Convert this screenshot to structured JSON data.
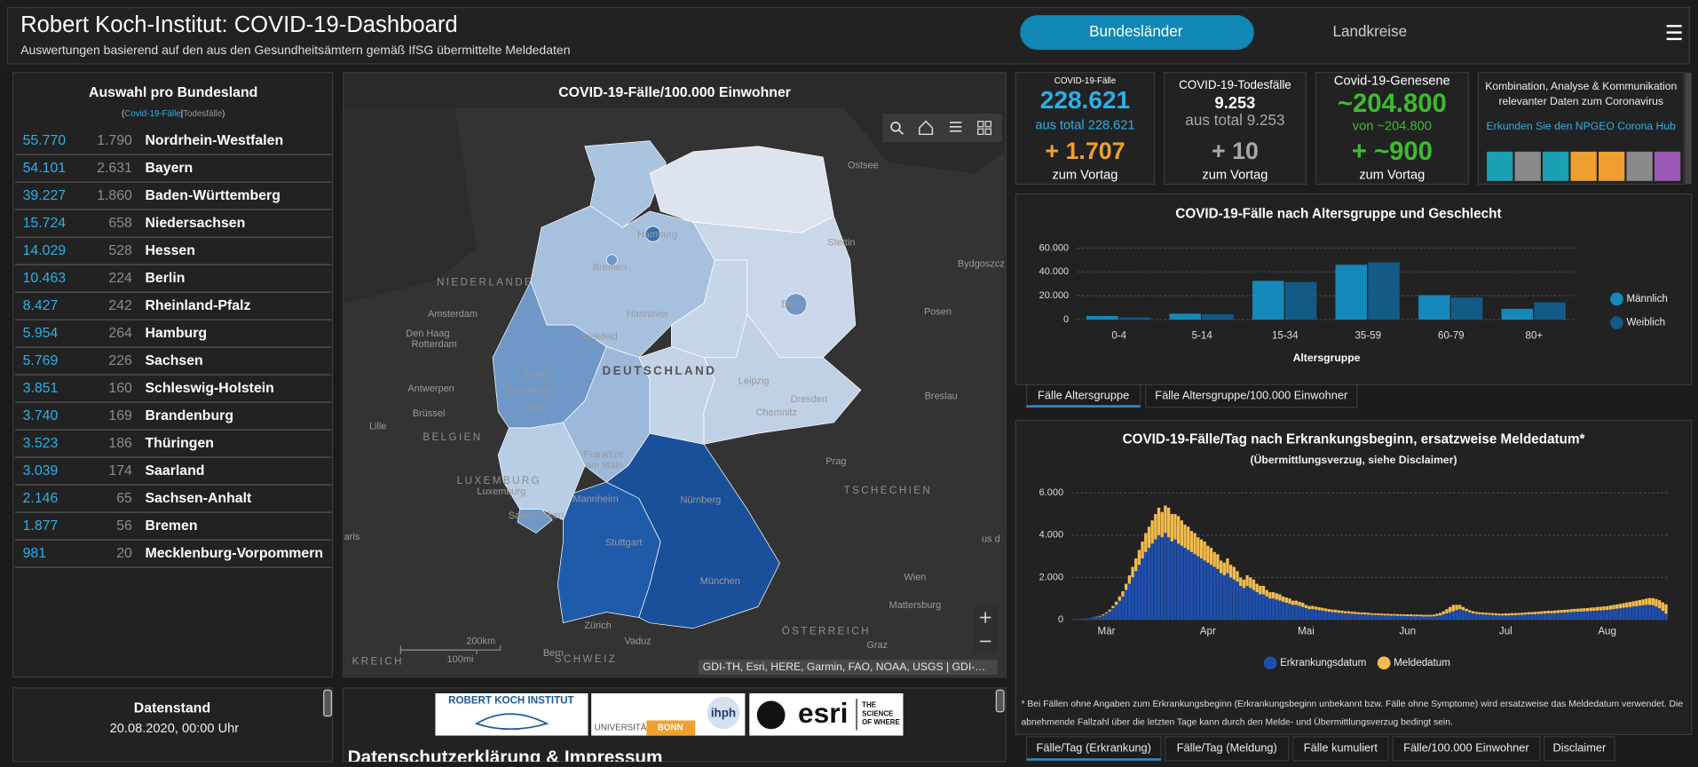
{
  "header": {
    "title": "Robert Koch-Institut: COVID-19-Dashboard",
    "subtitle": "Auswertungen basierend auf den aus den Gesundheitsämtern gemäß IfSG übermittelte Meldedaten"
  },
  "nav": {
    "tabs": [
      "Bundesländer",
      "Landkreise"
    ]
  },
  "state_list": {
    "title": "Auswahl pro Bundesland",
    "filter": [
      "(",
      "Covid-19-Fälle",
      "|",
      "Todesfälle",
      ")"
    ],
    "rows": [
      [
        "55.770",
        "1.790",
        "Nordrhein-Westfalen"
      ],
      [
        "54.101",
        "2.631",
        "Bayern"
      ],
      [
        "39.227",
        "1.860",
        "Baden-Württemberg"
      ],
      [
        "15.724",
        "658",
        "Niedersachsen"
      ],
      [
        "14.029",
        "528",
        "Hessen"
      ],
      [
        "10.463",
        "224",
        "Berlin"
      ],
      [
        "8.427",
        "242",
        "Rheinland-Pfalz"
      ],
      [
        "5.954",
        "264",
        "Hamburg"
      ],
      [
        "5.769",
        "226",
        "Sachsen"
      ],
      [
        "3.851",
        "160",
        "Schleswig-Holstein"
      ],
      [
        "3.740",
        "169",
        "Brandenburg"
      ],
      [
        "3.523",
        "186",
        "Thüringen"
      ],
      [
        "3.039",
        "174",
        "Saarland"
      ],
      [
        "2.146",
        "65",
        "Sachsen-Anhalt"
      ],
      [
        "1.877",
        "56",
        "Bremen"
      ],
      [
        "981",
        "20",
        "Mecklenburg-Vorpommern"
      ]
    ]
  },
  "map": {
    "title": "COVID-19-Fälle/100.000 Einwohner",
    "labels": [
      "Ostsee",
      "Hamburg",
      "Bremen",
      "NIEDERLANDE",
      "Amsterdam",
      "Hannover",
      "Berlin",
      "Den Haag",
      "Rotterdam",
      "Bielefeld",
      "DEUTSCHLAND",
      "Essen",
      "Düsseldorf",
      "Leipzig",
      "Dresden",
      "Köln",
      "Antwerpen",
      "Brüssel",
      "BELGIEN",
      "Chemnitz",
      "Lille",
      "Frankfurt",
      "am Main",
      "LUXEMBURG",
      "Luxemburg",
      "Mannheim",
      "Nürnberg",
      "Saarbrücken",
      "Stuttgart",
      "München",
      "Prag",
      "TSCHECHIEN",
      "Stettin",
      "Bydgoszcz",
      "Posen",
      "Breslau",
      "Wien",
      "Mattersburg",
      "Zürich",
      "Vaduz",
      "Bern",
      "SCHWEIZ",
      "ÖSTERREICH",
      "Graz",
      "KREICH",
      "aris",
      "us d"
    ],
    "scale": [
      "200km",
      "100mi"
    ],
    "attribution": "GDI-TH, Esri, HERE, Garmin, FAO, NOAA, USGS | GDI-…"
  },
  "kpis": [
    {
      "title": "COVID-19-Fälle",
      "value": "228.621",
      "sub": "aus total 228.621",
      "delta": "+ 1.707",
      "delta_label": "zum Vortag"
    },
    {
      "title": "COVID-19-Todesfälle",
      "value": "9.253",
      "sub": "aus total 9.253",
      "delta": "+ 10",
      "delta_label": "zum Vortag"
    },
    {
      "title": "Covid-19-Genesene",
      "value": "~204.800",
      "sub": "von ~204.800",
      "delta": "+ ~900",
      "delta_label": "zum Vortag"
    }
  ],
  "hub": {
    "lines": [
      "Kombination, Analyse & Kommunikation",
      "relevanter Daten zum Coronavirus"
    ],
    "link": "Erkunden Sie den NPGEO Corona Hub"
  },
  "chart_data": [
    {
      "type": "bar",
      "title": "COVID-19-Fälle nach Altersgruppe und Geschlecht",
      "xlabel": "Altersgruppe",
      "categories": [
        "0-4",
        "5-14",
        "15-34",
        "35-59",
        "60-79",
        "80+"
      ],
      "series": [
        {
          "name": "Männlich",
          "color": "#1589b9",
          "values": [
            3000,
            5000,
            32500,
            46000,
            20500,
            9000
          ]
        },
        {
          "name": "Weiblich",
          "color": "#135a86",
          "values": [
            1800,
            4500,
            31500,
            48000,
            18500,
            14500
          ]
        }
      ],
      "ylim": [
        0,
        60000
      ],
      "yticks": [
        0,
        {
          "value": 20000,
          "label": "20.000"
        },
        {
          "value": 40000,
          "label": "40.000"
        },
        {
          "value": 60000,
          "label": "60.000"
        }
      ],
      "grid": true,
      "legend": "right"
    },
    {
      "type": "bar",
      "stacked": true,
      "title": "COVID-19-Fälle/Tag nach Erkrankungsbeginn, ersatzweise Meldedatum*",
      "subtitle": "(Übermittlungsverzug, siehe Disclaimer)",
      "categories": [
        null,
        null,
        null,
        null,
        null,
        null,
        null,
        null,
        null,
        null,
        "Mär",
        null,
        null,
        null,
        null,
        null,
        null,
        null,
        null,
        null,
        null,
        null,
        null,
        null,
        null,
        null,
        null,
        null,
        null,
        null,
        null,
        null,
        null,
        null,
        null,
        null,
        null,
        null,
        null,
        null,
        null,
        "Apr",
        null,
        null,
        null,
        null,
        null,
        null,
        null,
        null,
        null,
        null,
        null,
        null,
        null,
        null,
        null,
        null,
        null,
        null,
        null,
        null,
        null,
        null,
        null,
        null,
        null,
        null,
        null,
        null,
        null,
        "Mai",
        null,
        null,
        null,
        null,
        null,
        null,
        null,
        null,
        null,
        null,
        null,
        null,
        null,
        null,
        null,
        null,
        null,
        null,
        null,
        null,
        null,
        null,
        null,
        null,
        null,
        null,
        null,
        null,
        null,
        null,
        "Jun",
        null,
        null,
        null,
        null,
        null,
        null,
        null,
        null,
        null,
        null,
        null,
        null,
        null,
        null,
        null,
        null,
        null,
        null,
        null,
        null,
        null,
        null,
        null,
        null,
        null,
        null,
        null,
        null,
        null,
        "Jul",
        null,
        null,
        null,
        null,
        null,
        null,
        null,
        null,
        null,
        null,
        null,
        null,
        null,
        null,
        null,
        null,
        null,
        null,
        null,
        null,
        null,
        null,
        null,
        null,
        null,
        null,
        null,
        null,
        null,
        null,
        "Aug",
        null,
        null,
        null,
        null,
        null,
        null,
        null,
        null,
        null,
        null,
        null,
        null,
        null,
        null,
        null,
        null,
        null,
        null
      ],
      "series": [
        {
          "name": "Erkrankungsdatum",
          "color": "#1f4fae",
          "values": [
            20,
            30,
            40,
            50,
            60,
            80,
            100,
            120,
            150,
            200,
            300,
            400,
            550,
            700,
            900,
            1100,
            1400,
            1700,
            2000,
            2300,
            2600,
            2900,
            3200,
            3400,
            3600,
            3800,
            4000,
            3900,
            4100,
            3900,
            3700,
            3800,
            3600,
            3500,
            3400,
            3300,
            3200,
            3100,
            3000,
            2900,
            2800,
            2700,
            2600,
            2500,
            2400,
            2200,
            2100,
            2200,
            2000,
            1900,
            1800,
            1600,
            1500,
            1600,
            1500,
            1400,
            1300,
            1200,
            1200,
            1100,
            1000,
            1000,
            950,
            900,
            850,
            800,
            750,
            700,
            700,
            650,
            600,
            550,
            500,
            500,
            480,
            450,
            430,
            400,
            380,
            360,
            350,
            330,
            320,
            300,
            300,
            280,
            270,
            260,
            250,
            250,
            240,
            230,
            220,
            220,
            210,
            200,
            200,
            190,
            190,
            180,
            180,
            170,
            170,
            170,
            160,
            160,
            160,
            150,
            150,
            150,
            160,
            180,
            200,
            250,
            300,
            350,
            400,
            450,
            500,
            450,
            400,
            350,
            300,
            280,
            260,
            250,
            240,
            230,
            220,
            210,
            200,
            200,
            200,
            200,
            210,
            210,
            220,
            230,
            240,
            250,
            250,
            260,
            270,
            280,
            290,
            300,
            300,
            310,
            320,
            330,
            340,
            350,
            360,
            370,
            380,
            380,
            390,
            400,
            410,
            420,
            430,
            440,
            450,
            460,
            480,
            500,
            520,
            540,
            560,
            580,
            600,
            620,
            640,
            660,
            680,
            700,
            700,
            680,
            620,
            540,
            420,
            280
          ]
        },
        {
          "name": "Meldedatum",
          "color": "#f3bc4c",
          "values": [
            0,
            0,
            0,
            0,
            0,
            0,
            10,
            20,
            30,
            50,
            50,
            80,
            100,
            150,
            200,
            250,
            300,
            400,
            500,
            600,
            700,
            800,
            900,
            1000,
            1100,
            1200,
            1300,
            1200,
            1300,
            1400,
            1300,
            1200,
            1300,
            1200,
            1100,
            1100,
            1000,
            1000,
            900,
            900,
            900,
            800,
            800,
            700,
            700,
            600,
            600,
            700,
            600,
            600,
            500,
            400,
            400,
            500,
            500,
            500,
            400,
            400,
            400,
            300,
            300,
            300,
            300,
            300,
            250,
            250,
            250,
            200,
            200,
            200,
            200,
            150,
            150,
            150,
            140,
            140,
            130,
            130,
            120,
            120,
            120,
            110,
            110,
            100,
            100,
            100,
            100,
            90,
            90,
            90,
            90,
            80,
            80,
            80,
            80,
            80,
            80,
            80,
            80,
            80,
            80,
            80,
            80,
            80,
            80,
            80,
            80,
            80,
            80,
            80,
            80,
            100,
            120,
            150,
            200,
            250,
            300,
            250,
            200,
            150,
            120,
            100,
            100,
            90,
            90,
            90,
            90,
            90,
            90,
            90,
            90,
            90,
            100,
            100,
            100,
            100,
            100,
            100,
            100,
            110,
            110,
            110,
            110,
            120,
            120,
            120,
            120,
            120,
            130,
            130,
            130,
            130,
            140,
            140,
            140,
            150,
            150,
            150,
            160,
            160,
            170,
            170,
            180,
            180,
            190,
            200,
            200,
            210,
            220,
            230,
            240,
            250,
            260,
            270,
            280,
            300,
            320,
            340,
            360,
            380,
            400,
            450
          ]
        }
      ],
      "ylim": [
        0,
        6000
      ],
      "yticks": [
        0,
        {
          "value": 2000,
          "label": "2.000"
        },
        {
          "value": 4000,
          "label": "4.000"
        },
        {
          "value": 6000,
          "label": "6.000"
        }
      ],
      "grid": true,
      "legend": "bottom"
    }
  ],
  "age_tabs": [
    "Fälle Altersgruppe",
    "Fälle Altersgruppe/100.000 Einwohner"
  ],
  "daily_tabs": [
    "Fälle/Tag (Erkrankung)",
    "Fälle/Tag (Meldung)",
    "Fälle kumuliert",
    "Fälle/100.000 Einwohner",
    "Disclaimer"
  ],
  "disclaimer": [
    "* Bei Fällen ohne Angaben zum Erkrankungsbeginn (Erkrankungsbeginn unbekannt bzw. Fälle ohne Symptome) wird ersatzweise das Meldedatum verwendet. Die",
    "abnehmende Fallzahl über die letzten Tage kann durch den Melde- und Übermittlungsverzug bedingt sein."
  ],
  "status": {
    "title": "Datenstand",
    "date": "20.08.2020, 00:00 Uhr"
  },
  "footer": {
    "heading": "Datenschutzerklärung & Impressum",
    "logos": [
      "ROBERT KOCH INSTITUT",
      "UNIVERSITÄT",
      "BONN",
      "ihph",
      "esri",
      "THE",
      "SCIENCE",
      "OF WHERE"
    ]
  }
}
